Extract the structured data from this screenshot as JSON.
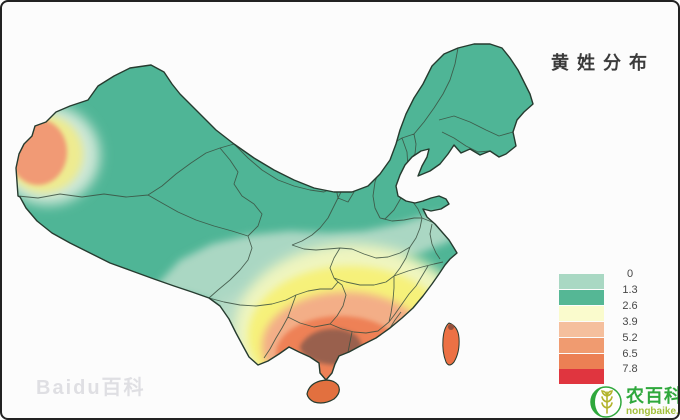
{
  "title": "黄姓分布",
  "legend": {
    "items": [
      {
        "label": "0",
        "color": "#a9d8c3"
      },
      {
        "label": "1.3",
        "color": "#55b795"
      },
      {
        "label": "2.6",
        "color": "#fafbcd"
      },
      {
        "label": "3.9",
        "color": "#f5bf9d"
      },
      {
        "label": "5.2",
        "color": "#f09b70"
      },
      {
        "label": "6.5",
        "color": "#ec8054"
      },
      {
        "label": "7.8",
        "color": "#e0353f"
      }
    ]
  },
  "watermark": "Baidu百科",
  "branding": {
    "name": "农百科",
    "url": "nongbaike.net"
  },
  "map": {
    "colors": {
      "base": "#4fb596",
      "band_light": "#aad7c3",
      "yunnan_light": "#b7dcc7",
      "band_pale": "#eff5bf",
      "band_yellow": "#f6f17a",
      "band_salmon": "#f3ae87",
      "band_orange": "#ee8156",
      "core_dark": "#99614e",
      "nw_pale": "#cde7d6",
      "nw_yellow": "#eeeb90",
      "nw_salmon": "#f19a74",
      "taiwan": "#ec7144",
      "taiwan_tip": "#94503c",
      "hainan": "#e2703f",
      "border_inner": "#3a4f40",
      "border_outer": "#263b2f"
    }
  }
}
